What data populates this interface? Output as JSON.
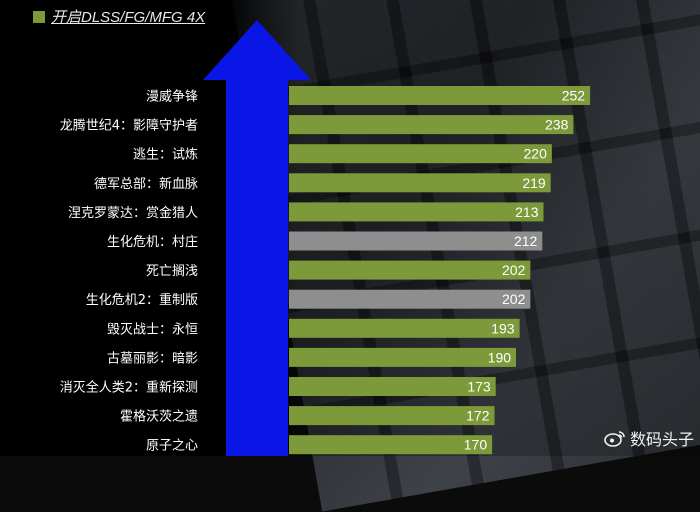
{
  "legend": {
    "label": "开启DLSS/FG/MFG 4X",
    "color": "#7d9a3a"
  },
  "watermark": {
    "text": "数码头子",
    "icon": "weibo-icon"
  },
  "chart_data": {
    "type": "bar",
    "orientation": "horizontal",
    "categories": [
      "漫威争锋",
      "龙腾世纪4：影障守护者",
      "逃生：试炼",
      "德军总部：新血脉",
      "涅克罗蒙达：赏金猎人",
      "生化危机：村庄",
      "死亡搁浅",
      "生化危机2：重制版",
      "毁灭战士：永恒",
      "古墓丽影：暗影",
      "消灭全人类2：重新探测",
      "霍格沃茨之遗",
      "原子之心"
    ],
    "values": [
      252,
      238,
      220,
      219,
      213,
      212,
      202,
      202,
      193,
      190,
      173,
      172,
      170
    ],
    "bar_colors": [
      "#7d9a3a",
      "#7d9a3a",
      "#7d9a3a",
      "#7d9a3a",
      "#7d9a3a",
      "#8e8e8e",
      "#7d9a3a",
      "#8e8e8e",
      "#7d9a3a",
      "#7d9a3a",
      "#7d9a3a",
      "#7d9a3a",
      "#7d9a3a"
    ],
    "xlim": [
      0,
      272
    ],
    "arrow_color": "#0a16e6"
  }
}
